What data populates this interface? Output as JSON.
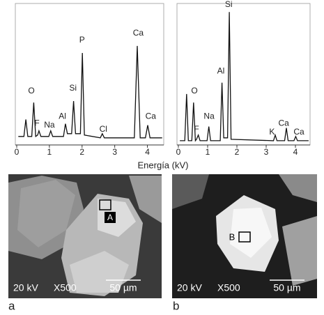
{
  "chart_data": [
    {
      "type": "line",
      "x_label": "Energía (kV)",
      "x": [
        0.05,
        0.22,
        0.28,
        0.34,
        0.46,
        0.52,
        0.58,
        0.64,
        0.68,
        0.74,
        0.98,
        1.04,
        1.1,
        1.43,
        1.49,
        1.55,
        1.68,
        1.74,
        1.8,
        1.95,
        2.01,
        2.07,
        2.56,
        2.62,
        2.68,
        3.6,
        3.69,
        3.78,
        3.94,
        4.01,
        4.08,
        4.45
      ],
      "values": [
        6,
        6,
        18,
        6,
        6,
        30,
        6,
        7,
        10,
        6,
        6,
        10,
        6,
        6,
        15,
        8,
        8,
        31,
        8,
        8,
        65,
        7,
        5,
        8,
        5,
        5,
        70,
        5,
        5,
        14,
        5,
        5
      ],
      "color": "#111111",
      "xlim": [
        0,
        4.5
      ],
      "ylim": [
        0,
        100
      ],
      "xticks": [
        0,
        1,
        2,
        3,
        4
      ],
      "annotations": [
        {
          "text": "O",
          "x": 0.45,
          "y": 38
        },
        {
          "text": "F",
          "x": 0.62,
          "y": 15
        },
        {
          "text": "Na",
          "x": 1.0,
          "y": 14
        },
        {
          "text": "Al",
          "x": 1.4,
          "y": 20
        },
        {
          "text": "Si",
          "x": 1.72,
          "y": 40
        },
        {
          "text": "P",
          "x": 2.0,
          "y": 74
        },
        {
          "text": "Cl",
          "x": 2.65,
          "y": 11
        },
        {
          "text": "Ca",
          "x": 3.72,
          "y": 79
        },
        {
          "text": "Ca",
          "x": 4.1,
          "y": 20
        }
      ]
    },
    {
      "type": "line",
      "x": [
        0.05,
        0.22,
        0.28,
        0.34,
        0.46,
        0.52,
        0.58,
        0.62,
        0.68,
        0.74,
        0.98,
        1.04,
        1.1,
        1.43,
        1.49,
        1.55,
        1.68,
        1.74,
        1.8,
        3.25,
        3.31,
        3.37,
        3.63,
        3.69,
        3.75,
        3.95,
        4.01,
        4.07,
        4.45
      ],
      "values": [
        3,
        3,
        36,
        3,
        3,
        30,
        3,
        4,
        7,
        3,
        3,
        13,
        3,
        3,
        44,
        5,
        5,
        94,
        4,
        3,
        7,
        3,
        3,
        12,
        3,
        3,
        6,
        3,
        3
      ],
      "color": "#111111",
      "xlim": [
        0,
        4.5
      ],
      "ylim": [
        0,
        100
      ],
      "xticks": [
        0,
        1,
        2,
        3,
        4
      ],
      "annotations": [
        {
          "text": "Si",
          "x": 1.72,
          "y": 99
        },
        {
          "text": "Al",
          "x": 1.45,
          "y": 52
        },
        {
          "text": "O",
          "x": 0.55,
          "y": 38
        },
        {
          "text": "Na",
          "x": 1.05,
          "y": 20
        },
        {
          "text": "F",
          "x": 0.62,
          "y": 11
        },
        {
          "text": "K",
          "x": 3.2,
          "y": 9
        },
        {
          "text": "Ca",
          "x": 3.6,
          "y": 15
        },
        {
          "text": "Ca",
          "x": 4.12,
          "y": 9
        }
      ]
    }
  ],
  "images": [
    {
      "panel": "a",
      "voltage": "20 kV",
      "magnification": "X500",
      "scale": "50 µm",
      "marker": "A"
    },
    {
      "panel": "b",
      "voltage": "20 kV",
      "magnification": "X500",
      "scale": "50 µm",
      "marker": "B"
    }
  ]
}
